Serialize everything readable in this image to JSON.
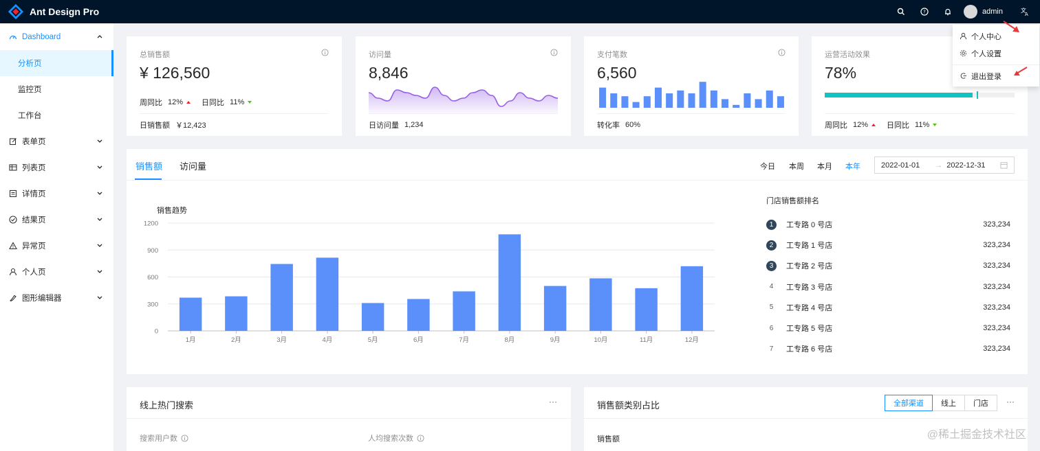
{
  "header": {
    "title": "Ant Design Pro",
    "username": "admin",
    "icons": [
      "search-icon",
      "question-icon",
      "bell-icon",
      "translate-icon"
    ]
  },
  "sidebar": {
    "items": [
      {
        "label": "Dashboard",
        "icon": "dashboard-icon",
        "open": true
      },
      {
        "label": "分析页",
        "active": true
      },
      {
        "label": "监控页"
      },
      {
        "label": "工作台"
      },
      {
        "label": "表单页",
        "icon": "form-icon"
      },
      {
        "label": "列表页",
        "icon": "table-icon"
      },
      {
        "label": "详情页",
        "icon": "profile-icon"
      },
      {
        "label": "结果页",
        "icon": "check-circle-icon"
      },
      {
        "label": "异常页",
        "icon": "warning-icon"
      },
      {
        "label": "个人页",
        "icon": "user-icon"
      },
      {
        "label": "图形编辑器",
        "icon": "highlight-icon"
      }
    ]
  },
  "stats": {
    "sales": {
      "title": "总销售额",
      "value": "¥ 126,560",
      "week_label": "周同比",
      "week": "12%",
      "day_label": "日同比",
      "day": "11%",
      "footer_label": "日销售额",
      "footer_value": "￥12,423"
    },
    "visits": {
      "title": "访问量",
      "value": "8,846",
      "footer_label": "日访问量",
      "footer_value": "1,234"
    },
    "payments": {
      "title": "支付笔数",
      "value": "6,560",
      "footer_label": "转化率",
      "footer_value": "60%"
    },
    "operations": {
      "title": "运营活动效果",
      "value": "78%",
      "progress": 0.78,
      "target": 0.8,
      "week_label": "周同比",
      "week": "12%",
      "day_label": "日同比",
      "day": "11%"
    }
  },
  "sales_card": {
    "tabs": [
      "销售额",
      "访问量"
    ],
    "ranges": [
      "今日",
      "本周",
      "本月",
      "本年"
    ],
    "active_range": "本年",
    "date_start": "2022-01-01",
    "date_end": "2022-12-31",
    "chart_title": "销售趋势",
    "ranking_title": "门店销售额排名",
    "ranking": [
      {
        "rank": "1",
        "name": "工专路 0 号店",
        "value": "323,234"
      },
      {
        "rank": "2",
        "name": "工专路 1 号店",
        "value": "323,234"
      },
      {
        "rank": "3",
        "name": "工专路 2 号店",
        "value": "323,234"
      },
      {
        "rank": "4",
        "name": "工专路 3 号店",
        "value": "323,234"
      },
      {
        "rank": "5",
        "name": "工专路 4 号店",
        "value": "323,234"
      },
      {
        "rank": "6",
        "name": "工专路 5 号店",
        "value": "323,234"
      },
      {
        "rank": "7",
        "name": "工专路 6 号店",
        "value": "323,234"
      }
    ]
  },
  "chart_data": [
    {
      "type": "bar",
      "title": "销售趋势",
      "categories": [
        "1月",
        "2月",
        "3月",
        "4月",
        "5月",
        "6月",
        "7月",
        "8月",
        "9月",
        "10月",
        "11月",
        "12月"
      ],
      "values": [
        370,
        385,
        745,
        815,
        310,
        355,
        440,
        1075,
        500,
        585,
        475,
        720
      ],
      "yticks": [
        0,
        300,
        600,
        900,
        1200
      ],
      "ylim": [
        0,
        1200
      ],
      "color": "#5b8ff9",
      "grid": true
    },
    {
      "type": "area",
      "values": [
        7,
        5,
        4,
        8,
        7,
        6,
        5,
        9,
        6,
        4,
        5,
        7,
        8,
        6,
        2,
        4,
        7,
        5,
        4,
        6,
        5
      ],
      "color": "#975fe4"
    },
    {
      "type": "bar",
      "values": [
        7,
        5,
        4,
        2,
        4,
        7,
        5,
        6,
        5,
        9,
        6,
        3,
        1,
        5,
        3,
        6,
        4
      ],
      "color": "#5b8ff9"
    }
  ],
  "dropdown": {
    "items": [
      "个人中心",
      "个人设置",
      "退出登录"
    ]
  },
  "search_card": {
    "title": "线上热门搜索",
    "more": "···",
    "col1": "搜索用户数",
    "col2": "人均搜索次数"
  },
  "category_card": {
    "title": "销售额类别占比",
    "more": "···",
    "segments": [
      "全部渠道",
      "线上",
      "门店"
    ],
    "active": "全部渠道",
    "sub": "销售额"
  },
  "watermark": "@稀土掘金技术社区",
  "colors": {
    "primary": "#1890ff",
    "header_bg": "#001529",
    "progress": "#13c2c2",
    "bar": "#5b8ff9",
    "area": "#975fe4"
  }
}
